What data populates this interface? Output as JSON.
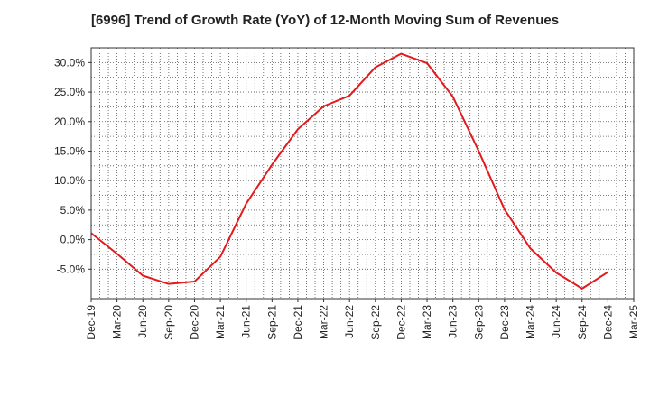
{
  "chart_data": {
    "type": "line",
    "title": "[6996]  Trend of Growth Rate (YoY) of 12-Month Moving Sum of Revenues",
    "xlabel": "",
    "ylabel": "",
    "ylim": [
      -10,
      32.5
    ],
    "yticks": [
      -5,
      0,
      5,
      10,
      15,
      20,
      25,
      30
    ],
    "ytick_labels": [
      "-5.0%",
      "0.0%",
      "5.0%",
      "10.0%",
      "15.0%",
      "20.0%",
      "25.0%",
      "30.0%"
    ],
    "x_tick_labels": [
      "Dec-19",
      "Mar-20",
      "Jun-20",
      "Sep-20",
      "Dec-20",
      "Mar-21",
      "Jun-21",
      "Sep-21",
      "Dec-21",
      "Mar-22",
      "Jun-22",
      "Sep-22",
      "Dec-22",
      "Mar-23",
      "Jun-23",
      "Sep-23",
      "Dec-23",
      "Mar-24",
      "Jun-24",
      "Sep-24",
      "Dec-24",
      "Mar-25"
    ],
    "grid": true,
    "series": [
      {
        "color": "#e31a1c",
        "x": [
          "Dec-19",
          "Mar-20",
          "Jun-20",
          "Sep-20",
          "Dec-20",
          "Mar-21",
          "Jun-21",
          "Sep-21",
          "Dec-21",
          "Mar-22",
          "Jun-22",
          "Sep-22",
          "Dec-22",
          "Mar-23",
          "Jun-23",
          "Sep-23",
          "Dec-23",
          "Mar-24",
          "Jun-24",
          "Sep-24",
          "Dec-24"
        ],
        "values": [
          1.1,
          -2.4,
          -6.1,
          -7.5,
          -7.1,
          -2.9,
          6.1,
          12.7,
          18.7,
          22.6,
          24.4,
          29.2,
          31.5,
          29.9,
          24.2,
          15.0,
          5.1,
          -1.5,
          -5.6,
          -8.3,
          -5.5
        ]
      }
    ]
  }
}
